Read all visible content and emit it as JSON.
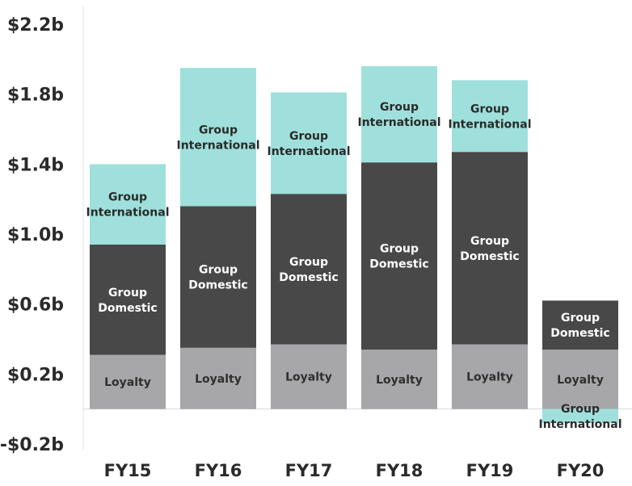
{
  "chart_data": {
    "type": "bar",
    "stacked": true,
    "categories": [
      "FY15",
      "FY16",
      "FY17",
      "FY18",
      "FY19",
      "FY20"
    ],
    "ylim": [
      -0.2,
      2.2
    ],
    "yticks": [
      -0.2,
      0.2,
      0.6,
      1.0,
      1.4,
      1.8,
      2.2
    ],
    "ytick_labels": [
      "-$0.2b",
      "$0.2b",
      "$0.6b",
      "$1.0b",
      "$1.4b",
      "$1.8b",
      "$2.2b"
    ],
    "grid": false,
    "series": [
      {
        "name": "Loyalty",
        "label_lines": [
          "Loyalty"
        ],
        "color": "#a7a6a8",
        "text_color": "#2f2f2f",
        "values": [
          0.31,
          0.35,
          0.37,
          0.34,
          0.37,
          0.34
        ]
      },
      {
        "name": "Group Domestic",
        "label_lines": [
          "Group",
          "Domestic"
        ],
        "color": "#484848",
        "text_color": "#ffffff",
        "values": [
          0.63,
          0.81,
          0.86,
          1.07,
          1.1,
          0.28
        ]
      },
      {
        "name": "Group International",
        "label_lines": [
          "Group",
          "International"
        ],
        "color": "#9fe0dc",
        "text_color": "#2a2a2a",
        "values": [
          0.46,
          0.79,
          0.58,
          0.55,
          0.41,
          -0.08
        ]
      }
    ]
  }
}
